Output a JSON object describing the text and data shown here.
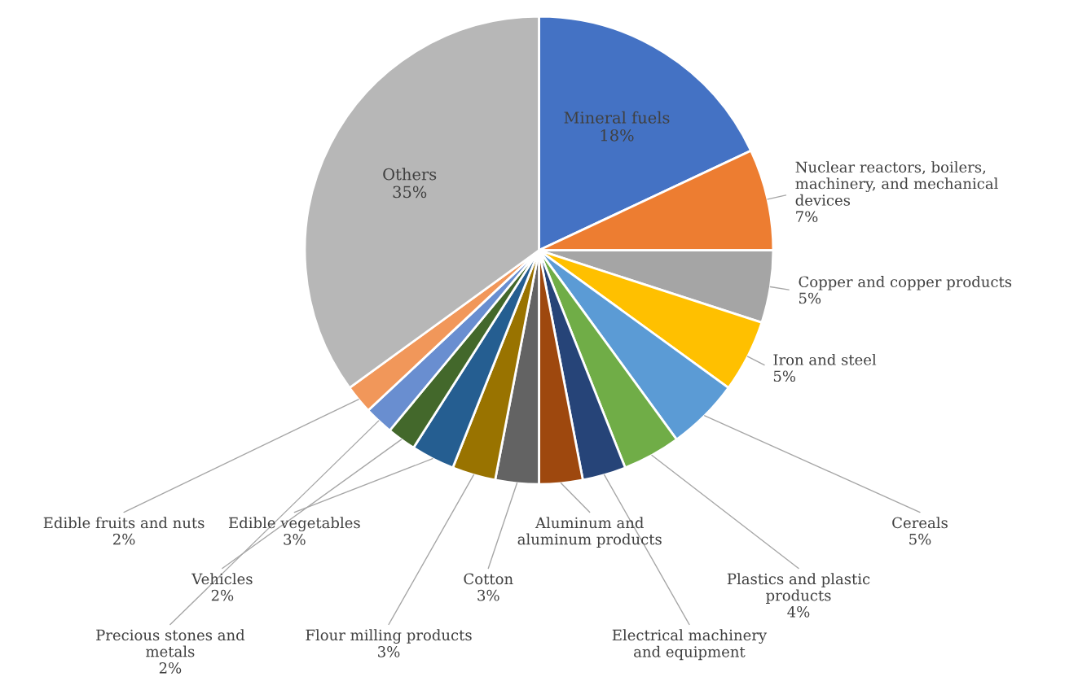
{
  "chart_data": {
    "type": "pie",
    "categories": [
      "Mineral fuels",
      "Nuclear reactors, boilers, machinery, and mechanical devices",
      "Copper and copper products",
      "Iron and steel",
      "Cereals",
      "Plastics and plastic products",
      "Electrical machinery and equipment",
      "Aluminum and aluminum products",
      "Cotton",
      "Flour milling products",
      "Edible vegetables",
      "Vehicles",
      "Precious stones and metals",
      "Edible fruits and nuts",
      "Others"
    ],
    "values": [
      18,
      7,
      5,
      5,
      5,
      4,
      3,
      3,
      3,
      3,
      3,
      2,
      2,
      2,
      35
    ],
    "value_labels": [
      "18%",
      "7%",
      "5%",
      "5%",
      "5%",
      "4%",
      null,
      null,
      "3%",
      "3%",
      "3%",
      "2%",
      "2%",
      "2%",
      "35%"
    ],
    "colors": [
      "#4472c4",
      "#ed7d31",
      "#a5a5a5",
      "#ffc000",
      "#5b9bd5",
      "#70ad47",
      "#264478",
      "#9e480e",
      "#636363",
      "#997300",
      "#255e91",
      "#43682b",
      "#698ed0",
      "#f1975a",
      "#b7b7b7"
    ]
  }
}
